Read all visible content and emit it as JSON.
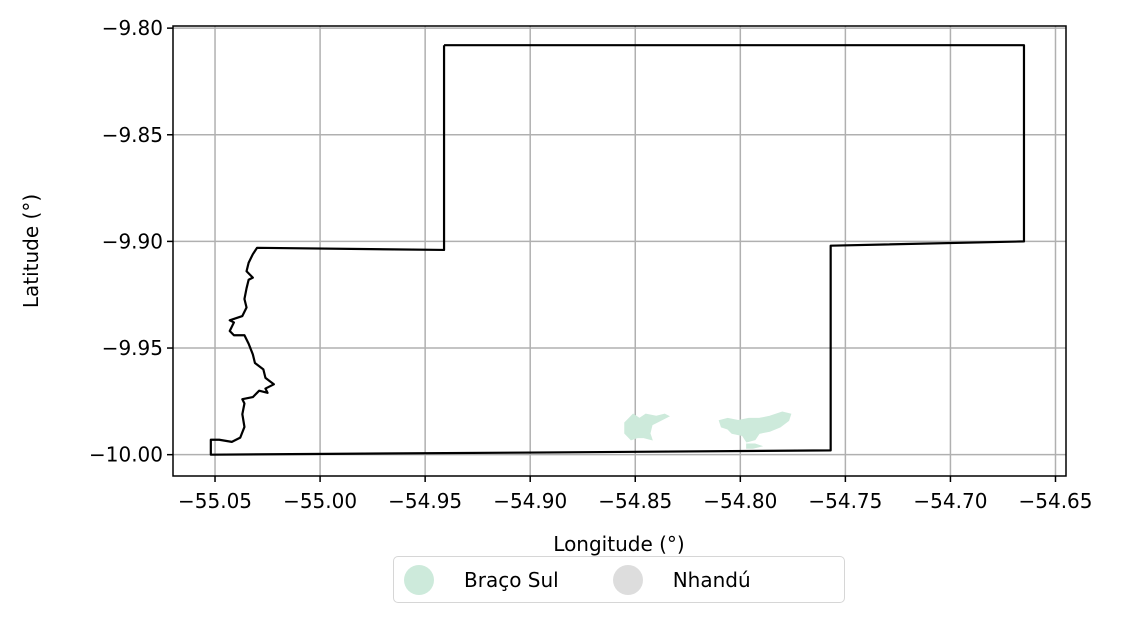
{
  "chart_data": {
    "type": "map",
    "xlabel": "Longitude (°)",
    "ylabel": "Latitude (°)",
    "xlim": [
      -55.07,
      -54.645
    ],
    "ylim": [
      -10.01,
      -9.799
    ],
    "grid": true,
    "x_ticks": [
      -55.05,
      -55.0,
      -54.95,
      -54.9,
      -54.85,
      -54.8,
      -54.75,
      -54.7,
      -54.65
    ],
    "x_tick_labels": [
      "−55.05",
      "−55.00",
      "−54.95",
      "−54.90",
      "−54.85",
      "−54.80",
      "−54.75",
      "−54.70",
      "−54.65"
    ],
    "y_ticks": [
      -9.8,
      -9.85,
      -9.9,
      -9.95,
      -10.0
    ],
    "y_tick_labels": [
      "−9.80",
      "−9.85",
      "−9.90",
      "−9.95",
      "−10.00"
    ],
    "boundary": {
      "color": "#000000",
      "coordinates": [
        [
          -54.941,
          -9.808
        ],
        [
          -54.665,
          -9.808
        ],
        [
          -54.665,
          -9.9
        ],
        [
          -54.757,
          -9.902
        ],
        [
          -54.757,
          -9.998
        ],
        [
          -54.9,
          -9.999
        ],
        [
          -55.052,
          -10.0
        ],
        [
          -55.052,
          -9.993
        ],
        [
          -55.048,
          -9.993
        ],
        [
          -55.042,
          -9.994
        ],
        [
          -55.038,
          -9.992
        ],
        [
          -55.036,
          -9.987
        ],
        [
          -55.037,
          -9.981
        ],
        [
          -55.036,
          -9.976
        ],
        [
          -55.037,
          -9.974
        ],
        [
          -55.032,
          -9.973
        ],
        [
          -55.029,
          -9.97
        ],
        [
          -55.025,
          -9.971
        ],
        [
          -55.026,
          -9.969
        ],
        [
          -55.022,
          -9.967
        ],
        [
          -55.026,
          -9.964
        ],
        [
          -55.027,
          -9.96
        ],
        [
          -55.031,
          -9.957
        ],
        [
          -55.032,
          -9.953
        ],
        [
          -55.034,
          -9.948
        ],
        [
          -55.036,
          -9.944
        ],
        [
          -55.041,
          -9.944
        ],
        [
          -55.043,
          -9.942
        ],
        [
          -55.041,
          -9.938
        ],
        [
          -55.043,
          -9.937
        ],
        [
          -55.037,
          -9.935
        ],
        [
          -55.035,
          -9.931
        ],
        [
          -55.036,
          -9.927
        ],
        [
          -55.035,
          -9.922
        ],
        [
          -55.034,
          -9.918
        ],
        [
          -55.032,
          -9.917
        ],
        [
          -55.035,
          -9.914
        ],
        [
          -55.034,
          -9.91
        ],
        [
          -55.032,
          -9.906
        ],
        [
          -55.03,
          -9.903
        ],
        [
          -54.941,
          -9.904
        ],
        [
          -54.941,
          -9.808
        ]
      ]
    },
    "regions": [
      {
        "name": "Braço Sul",
        "color": "#cdeadb",
        "polygons": [
          [
            [
              -54.855,
              -9.985
            ],
            [
              -54.853,
              -9.983
            ],
            [
              -54.851,
              -9.981
            ],
            [
              -54.848,
              -9.983
            ],
            [
              -54.845,
              -9.981
            ],
            [
              -54.84,
              -9.982
            ],
            [
              -54.836,
              -9.981
            ],
            [
              -54.834,
              -9.982
            ],
            [
              -54.838,
              -9.984
            ],
            [
              -54.842,
              -9.986
            ],
            [
              -54.843,
              -9.99
            ],
            [
              -54.842,
              -9.993
            ],
            [
              -54.846,
              -9.992
            ],
            [
              -54.849,
              -9.992
            ],
            [
              -54.852,
              -9.993
            ],
            [
              -54.855,
              -9.99
            ]
          ],
          [
            [
              -54.81,
              -9.984
            ],
            [
              -54.806,
              -9.983
            ],
            [
              -54.801,
              -9.984
            ],
            [
              -54.796,
              -9.983
            ],
            [
              -54.791,
              -9.983
            ],
            [
              -54.786,
              -9.982
            ],
            [
              -54.78,
              -9.98
            ],
            [
              -54.776,
              -9.981
            ],
            [
              -54.777,
              -9.984
            ],
            [
              -54.781,
              -9.987
            ],
            [
              -54.786,
              -9.989
            ],
            [
              -54.791,
              -9.99
            ],
            [
              -54.793,
              -9.993
            ],
            [
              -54.797,
              -9.994
            ],
            [
              -54.799,
              -9.991
            ],
            [
              -54.804,
              -9.99
            ],
            [
              -54.806,
              -9.988
            ],
            [
              -54.809,
              -9.987
            ]
          ],
          [
            [
              -54.797,
              -9.995
            ],
            [
              -54.793,
              -9.995
            ],
            [
              -54.79,
              -9.996
            ],
            [
              -54.794,
              -9.997
            ],
            [
              -54.797,
              -9.997
            ]
          ]
        ]
      },
      {
        "name": "Nhandú",
        "color": "#dddddd",
        "polygons": []
      }
    ]
  }
}
